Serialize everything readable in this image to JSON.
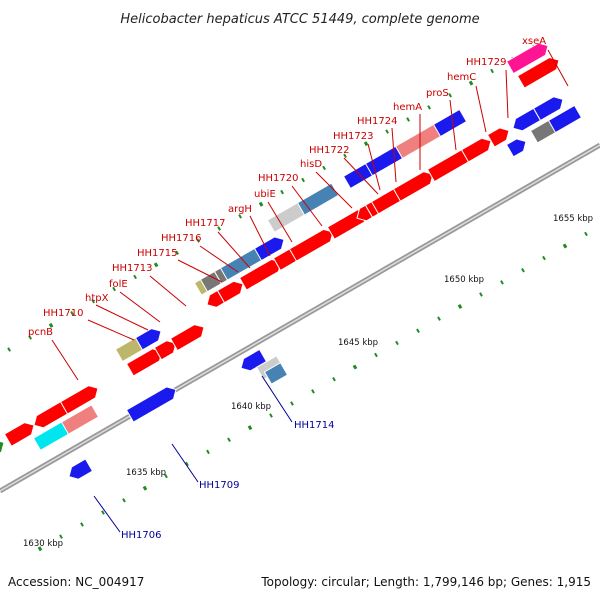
{
  "title": "Helicobacter hepaticus ATCC 51449, complete genome",
  "footer": {
    "accession": "Accession: NC_004917",
    "summary": "Topology: circular; Length: 1,799,146 bp; Genes: 1,915"
  },
  "colors": {
    "red": "#ff0000",
    "blue": "#1a1aee",
    "pink": "#f08080",
    "cyan": "#00e5ee",
    "steel": "#4682b4",
    "gray": "#777777",
    "silver": "#cccccc",
    "khaki": "#bdb76b",
    "green": "#228b22",
    "magenta": "#ff1493",
    "label_red": "#cc0000",
    "label_blue": "#000099",
    "tick": "#228b22"
  },
  "scale_labels": [
    "1630 kbp",
    "1635 kbp",
    "1640 kbp",
    "1645 kbp",
    "1650 kbp",
    "1655 kbp"
  ],
  "labels_above": [
    "pcnB",
    "HH1710",
    "htpX",
    "folE",
    "HH1713",
    "HH1715",
    "HH1716",
    "HH1717",
    "argH",
    "ubiE",
    "HH1720",
    "hisD",
    "HH1722",
    "HH1723",
    "HH1724",
    "hemA",
    "proS",
    "hemC",
    "HH1729",
    "xseA"
  ],
  "labels_below": [
    "HH1706",
    "HH1709",
    "HH1714"
  ]
}
